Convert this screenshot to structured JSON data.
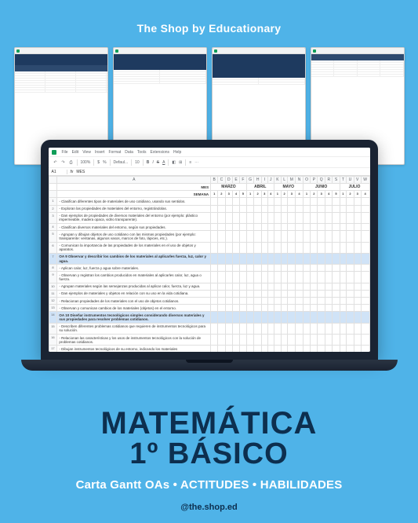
{
  "brand": "The Shop by Educationary",
  "product": {
    "title_line1": "MATEMÁTICA",
    "title_line2": "1º BÁSICO",
    "tagline": "Carta Gantt OAs • ACTITUDES • HABILIDADES",
    "handle": "@the.shop.ed"
  },
  "colors": {
    "page_bg": "#4fb3e8",
    "title_color": "#0d2f4f",
    "white": "#ffffff",
    "laptop_body": "#1a2332",
    "sheet_header": "#1e3a5f",
    "highlight": "#d0e3f7"
  },
  "spreadsheet": {
    "menu": [
      "File",
      "Edit",
      "View",
      "Insert",
      "Format",
      "Data",
      "Tools",
      "Extensions",
      "Help"
    ],
    "formula_cell": "A1",
    "formula_fx": "fx",
    "formula_value": "MES",
    "header_mes": "MES",
    "header_semana": "SEMANA",
    "months": [
      "MARZO",
      "ABRIL",
      "MAYO",
      "JUNIO",
      "JULIO"
    ],
    "weeks_per_month": [
      5,
      4,
      4,
      5,
      4
    ],
    "week_labels": [
      "1",
      "2",
      "3",
      "4",
      "5",
      "1",
      "2",
      "3",
      "4",
      "1",
      "2",
      "3",
      "4",
      "1",
      "2",
      "3",
      "4",
      "5",
      "1",
      "2",
      "3",
      "4"
    ],
    "rows": [
      {
        "n": "1",
        "text": "- Clasifican diferentes tipos de materiales de uso cotidiano, usando sus sentidos.",
        "bold": false,
        "hl": false
      },
      {
        "n": "2",
        "text": "- Exploran las propiedades de materiales del entorno, registrándolas.",
        "bold": false,
        "hl": false
      },
      {
        "n": "3",
        "text": "- Dan ejemplos de propiedades de diversos materiales del entorno (por ejemplo: plástico impermeable, madera opaca, vidrio transparente).",
        "bold": false,
        "hl": false
      },
      {
        "n": "4",
        "text": "- Clasifican diversos materiales del entorno, según sus propiedades.",
        "bold": false,
        "hl": false
      },
      {
        "n": "5",
        "text": "- Agrupan y dibujan objetos de uso cotidiano con las mismas propiedades (por ejemplo: transparente: ventanas, algunos vasos, marcos de foto, lápices, etc.).",
        "bold": false,
        "hl": false
      },
      {
        "n": "6",
        "text": "- Comunican la importancia de las propiedades de los materiales en el uso de objetos y aparatos.",
        "bold": false,
        "hl": false
      },
      {
        "n": "7",
        "text": "OA 9 Observar y describir los cambios de los materiales al aplicarles fuerza, luz, calor y agua.",
        "bold": true,
        "hl": true
      },
      {
        "n": "8",
        "text": "- Aplican calor, luz, fuerza y agua sobre materiales.",
        "bold": false,
        "hl": false
      },
      {
        "n": "9",
        "text": "- Observan y registran los cambios producidos en materiales al aplicarles calor, luz, agua o fuerza.",
        "bold": false,
        "hl": false
      },
      {
        "n": "10",
        "text": "- Agrupan materiales según las semejanzas producidas al aplicar calor, fuerza, luz y agua.",
        "bold": false,
        "hl": false
      },
      {
        "n": "11",
        "text": "- Dan ejemplos de materiales y objetos en relación con su uso en la vida cotidiana.",
        "bold": false,
        "hl": false
      },
      {
        "n": "12",
        "text": "- Relacionan propiedades de los materiales con el uso de objetos cotidianos.",
        "bold": false,
        "hl": false
      },
      {
        "n": "13",
        "text": "- Observan y comunican cambios de los materiales (objetos) en el entorno.",
        "bold": false,
        "hl": false
      },
      {
        "n": "14",
        "text": "OA 10 Diseñar instrumentos tecnológicos simples considerando diversos materiales y sus propiedades para resolver problemas cotidianos.",
        "bold": true,
        "hl": true
      },
      {
        "n": "15",
        "text": "- Describen diferentes problemas cotidianos que requieren de instrumentos tecnológicos para su solución.",
        "bold": false,
        "hl": false
      },
      {
        "n": "16",
        "text": "- Relacionan las características y los usos de instrumentos tecnológicos con la solución de problemas cotidianos.",
        "bold": false,
        "hl": false
      },
      {
        "n": "17",
        "text": "- Dibujan instrumentos tecnológicos de su entorno, indicando los materiales",
        "bold": false,
        "hl": false
      }
    ]
  }
}
